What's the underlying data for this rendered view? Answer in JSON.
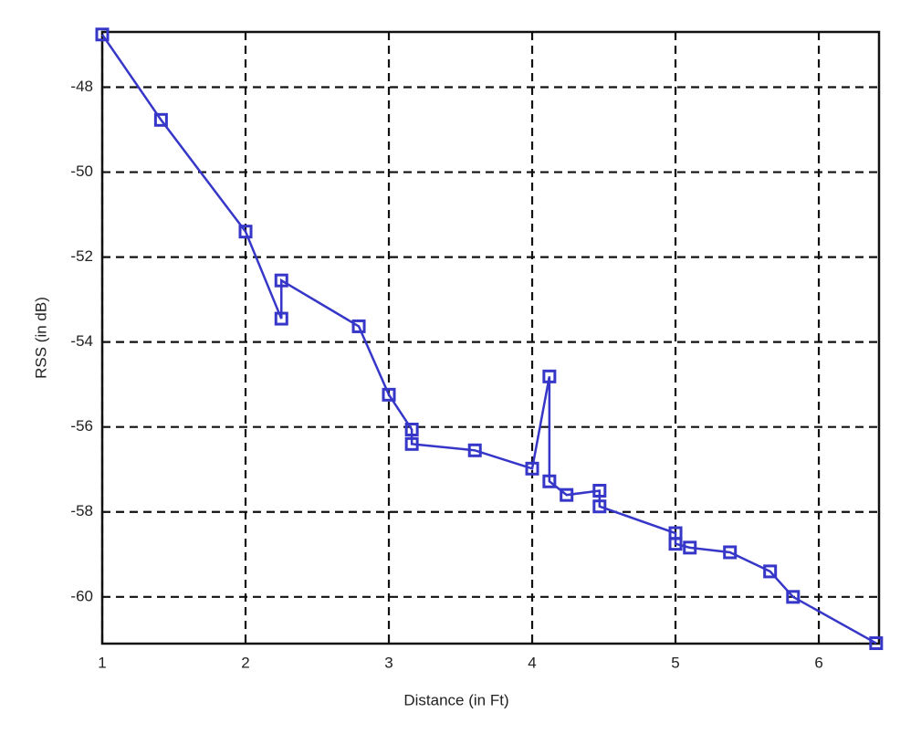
{
  "chart_data": {
    "type": "line",
    "x_label": "Distance (in Ft)",
    "y_label": "RSS (in dB)",
    "x": [
      1.0,
      1.41,
      2.0,
      2.25,
      2.25,
      2.79,
      3.0,
      3.16,
      3.16,
      3.6,
      4.0,
      4.12,
      4.12,
      4.24,
      4.47,
      4.47,
      5.0,
      5.0,
      5.1,
      5.38,
      5.66,
      5.82,
      6.4
    ],
    "series": [
      {
        "color": "#3636c8",
        "values": [
          -46.76,
          -48.77,
          -51.4,
          -53.45,
          -52.55,
          -53.63,
          -55.24,
          -56.06,
          -56.4,
          -56.55,
          -56.98,
          -54.81,
          -57.28,
          -57.6,
          -57.5,
          -57.87,
          -58.5,
          -58.75,
          -58.84,
          -58.95,
          -59.4,
          -60.0,
          -61.09
        ]
      }
    ],
    "xlim": [
      1,
      6.42
    ],
    "ylim": [
      -61.1,
      -46.7
    ],
    "xticks": [
      1,
      2,
      3,
      4,
      5,
      6
    ],
    "yticks": [
      -48,
      -50,
      -52,
      -54,
      -56,
      -58,
      -60
    ],
    "grid": true
  }
}
